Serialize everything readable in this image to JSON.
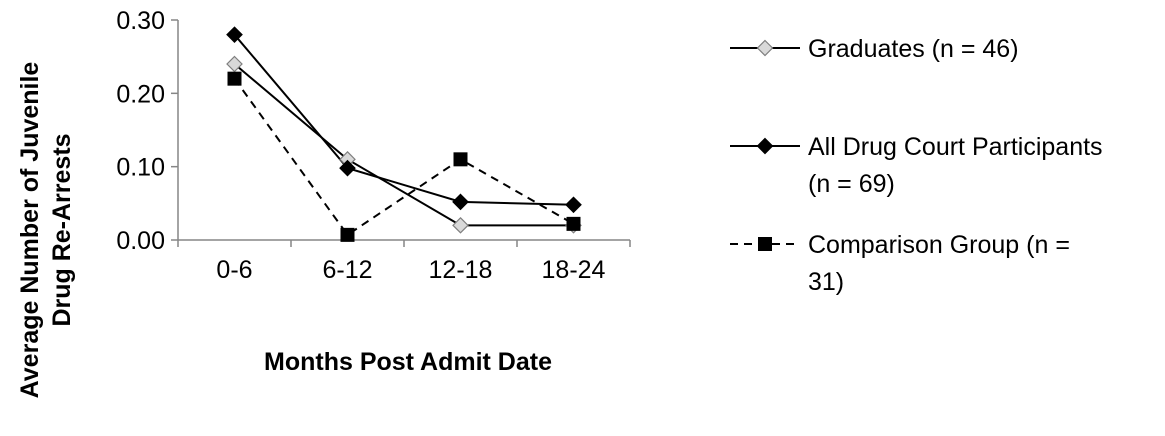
{
  "chart_data": {
    "type": "line",
    "categories": [
      "0-6",
      "6-12",
      "12-18",
      "18-24"
    ],
    "xlabel": "Months Post Admit Date",
    "ylabel": "Average Number of Juvenile Drug Re-Arrests",
    "ylabel_lines": [
      "Average Number of Juvenile",
      "Drug Re-Arrests"
    ],
    "ylim": [
      0,
      0.3
    ],
    "yticks": [
      "0.00",
      "0.10",
      "0.20",
      "0.30"
    ],
    "grid": false,
    "legend_position": "right",
    "series": [
      {
        "name": "Graduates (n = 46)",
        "name_lines": [
          "Graduates (n = 46)"
        ],
        "values": [
          0.24,
          0.11,
          0.02,
          0.02
        ],
        "marker": "diamond-open",
        "line_style": "solid",
        "color": "#000000",
        "marker_fill": "#d9d9d9"
      },
      {
        "name": "All Drug Court Participants (n = 69)",
        "name_lines": [
          "All Drug Court Participants",
          "(n = 69)"
        ],
        "values": [
          0.28,
          0.098,
          0.052,
          0.048
        ],
        "marker": "diamond-filled",
        "line_style": "solid",
        "color": "#000000",
        "marker_fill": "#000000"
      },
      {
        "name": "Comparison Group (n = 31)",
        "name_lines": [
          "Comparison Group (n =",
          "31)"
        ],
        "values": [
          0.22,
          0.007,
          0.11,
          0.022
        ],
        "marker": "square",
        "line_style": "dashed",
        "color": "#000000",
        "marker_fill": "#000000"
      }
    ]
  }
}
